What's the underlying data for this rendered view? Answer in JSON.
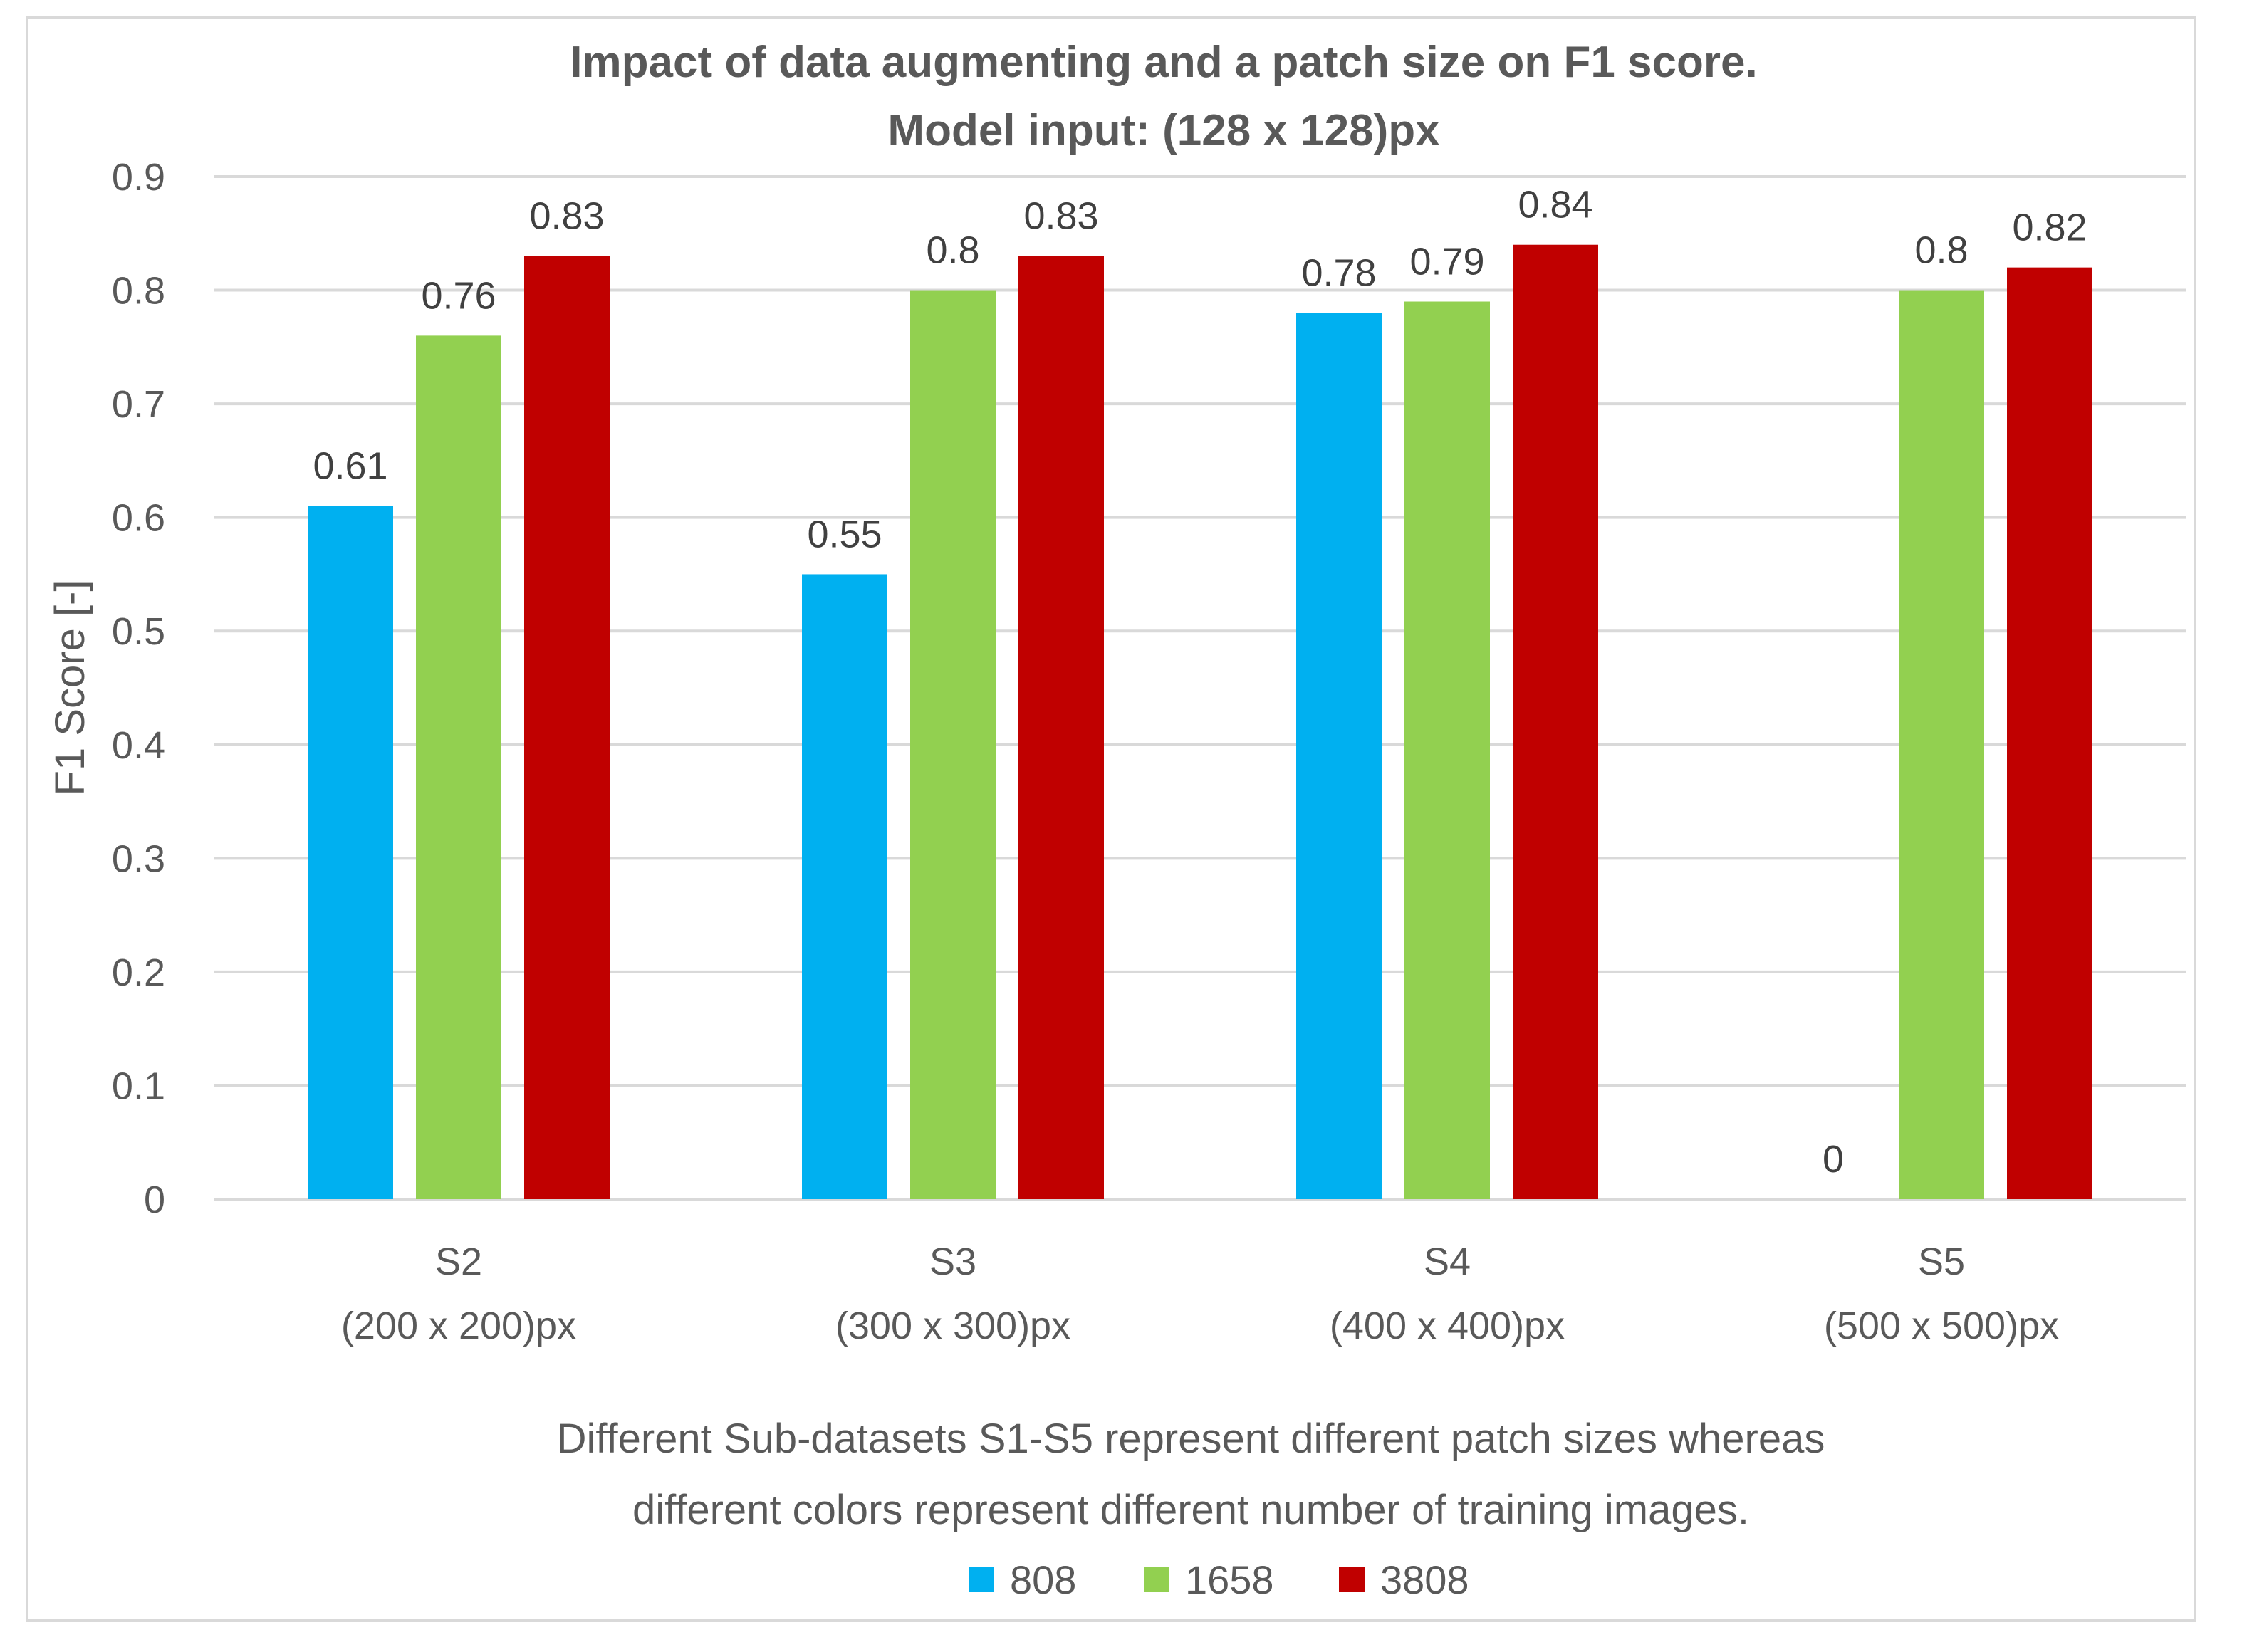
{
  "chart_data": {
    "type": "bar",
    "title_lines": [
      "Impact of data augmenting and a patch size on F1 score.",
      "Model input: (128 x 128)px"
    ],
    "ylabel": "F1 Score [-]",
    "xlabel_lines": [
      "Different Sub-datasets S1-S5 represent different patch sizes whereas",
      "different colors represent different number of training images."
    ],
    "categories": [
      [
        "S2",
        "(200 x 200)px"
      ],
      [
        "S3",
        "(300 x 300)px"
      ],
      [
        "S4",
        "(400 x 400)px"
      ],
      [
        "S5",
        "(500 x 500)px"
      ]
    ],
    "ylim": [
      0,
      0.9
    ],
    "yticks": [
      0,
      0.1,
      0.2,
      0.3,
      0.4,
      0.5,
      0.6,
      0.7,
      0.8,
      0.9
    ],
    "grid": true,
    "legend_position": "bottom",
    "series": [
      {
        "name": "808",
        "color": "#00b0f0",
        "values": [
          0.61,
          0.55,
          0.78,
          0
        ],
        "labels": [
          "0.61",
          "0.55",
          "0.78",
          "0"
        ]
      },
      {
        "name": "1658",
        "color": "#92d050",
        "values": [
          0.76,
          0.8,
          0.79,
          0.8
        ],
        "labels": [
          "0.76",
          "0.8",
          "0.79",
          "0.8"
        ]
      },
      {
        "name": "3808",
        "color": "#c00000",
        "values": [
          0.83,
          0.83,
          0.84,
          0.82
        ],
        "labels": [
          "0.83",
          "0.83",
          "0.84",
          "0.82"
        ]
      }
    ]
  }
}
